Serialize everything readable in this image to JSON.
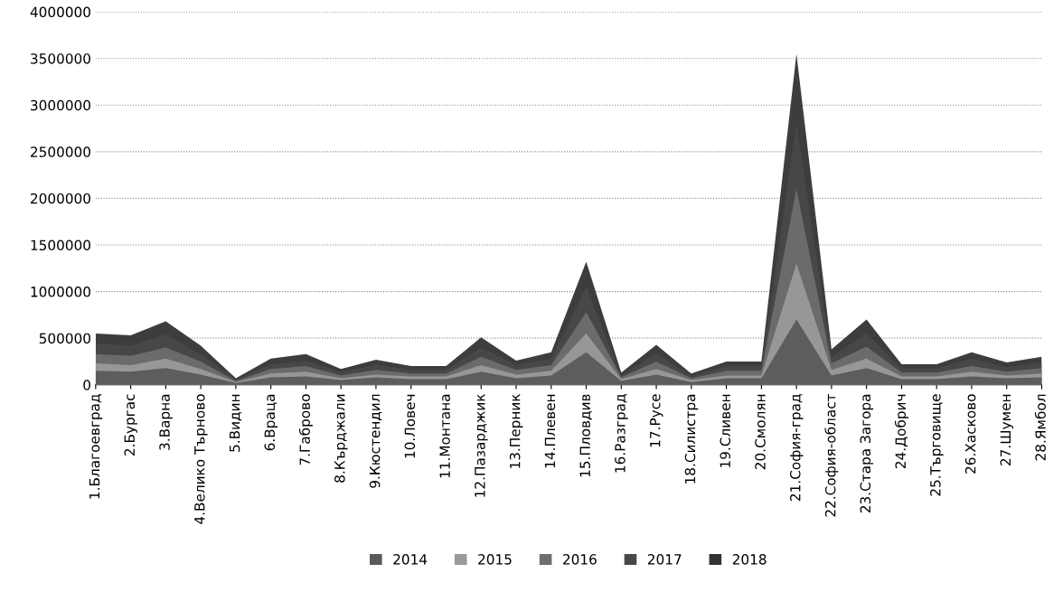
{
  "chart_data": {
    "type": "area",
    "categories": [
      "1.Благоевград",
      "2.Бургас",
      "3.Варна",
      "4.Велико Търново",
      "5.Видин",
      "6.Враца",
      "7.Габрово",
      "8.Кърджали",
      "9.Кюстендил",
      "10.Ловеч",
      "11.Монтана",
      "12.Пазарджик",
      "13.Перник",
      "14.Плевен",
      "15.Пловдив",
      "16.Разград",
      "17.Русе",
      "18.Силистра",
      "19.Сливен",
      "20.Смолян",
      "21.София-град",
      "22.София-област",
      "23.Стара Загора",
      "24.Добрич",
      "25.Търговище",
      "26.Хасково",
      "27.Шумен",
      "28.Ямбол"
    ],
    "series": [
      {
        "name": "2014",
        "color": "#5a5a5a",
        "values": [
          150000,
          140000,
          180000,
          110000,
          20000,
          80000,
          90000,
          50000,
          80000,
          60000,
          60000,
          140000,
          70000,
          100000,
          350000,
          40000,
          110000,
          30000,
          70000,
          70000,
          700000,
          100000,
          180000,
          60000,
          60000,
          90000,
          70000,
          80000
        ]
      },
      {
        "name": "2015",
        "color": "#9a9a9a",
        "values": [
          230000,
          210000,
          280000,
          170000,
          30000,
          120000,
          140000,
          70000,
          110000,
          90000,
          90000,
          210000,
          110000,
          150000,
          550000,
          60000,
          170000,
          50000,
          100000,
          100000,
          1300000,
          160000,
          280000,
          90000,
          90000,
          140000,
          100000,
          120000
        ]
      },
      {
        "name": "2016",
        "color": "#6e6e6e",
        "values": [
          330000,
          310000,
          400000,
          250000,
          40000,
          170000,
          200000,
          100000,
          160000,
          120000,
          120000,
          300000,
          160000,
          210000,
          780000,
          80000,
          250000,
          70000,
          150000,
          150000,
          2100000,
          230000,
          410000,
          130000,
          130000,
          200000,
          140000,
          180000
        ]
      },
      {
        "name": "2017",
        "color": "#484848",
        "values": [
          440000,
          420000,
          540000,
          330000,
          55000,
          220000,
          260000,
          135000,
          215000,
          160000,
          160000,
          400000,
          210000,
          280000,
          1050000,
          100000,
          340000,
          95000,
          200000,
          200000,
          2800000,
          300000,
          550000,
          175000,
          175000,
          280000,
          190000,
          240000
        ]
      },
      {
        "name": "2018",
        "color": "#333333",
        "values": [
          550000,
          530000,
          680000,
          420000,
          70000,
          280000,
          330000,
          170000,
          270000,
          200000,
          200000,
          510000,
          260000,
          350000,
          1320000,
          130000,
          430000,
          120000,
          250000,
          250000,
          3550000,
          380000,
          700000,
          220000,
          220000,
          350000,
          240000,
          300000
        ]
      }
    ],
    "ylim": [
      0,
      4000000
    ],
    "yticks": [
      0,
      500000,
      1000000,
      1500000,
      2000000,
      2500000,
      3000000,
      3500000,
      4000000
    ],
    "grid": "y",
    "legend": "bottom"
  }
}
